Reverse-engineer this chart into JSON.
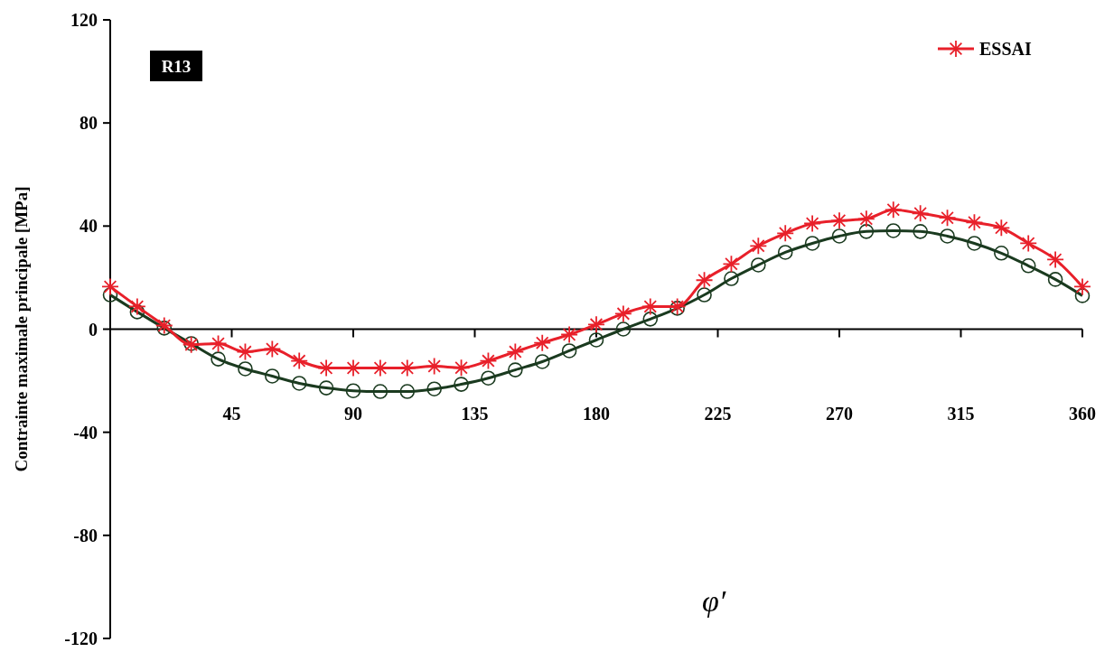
{
  "chart_data": {
    "type": "line",
    "xlabel": "φ′",
    "ylabel": "Contrainte maximale principale [MPa]",
    "annotations": [
      "R13"
    ],
    "x": [
      0,
      10,
      20,
      30,
      40,
      50,
      60,
      70,
      80,
      90,
      100,
      110,
      120,
      130,
      140,
      150,
      160,
      170,
      180,
      190,
      200,
      210,
      220,
      230,
      240,
      250,
      260,
      270,
      280,
      290,
      300,
      310,
      320,
      330,
      340,
      350,
      360
    ],
    "series": [
      {
        "color": "#1a3a1f",
        "marker": "circle",
        "values": [
          13.3,
          6.7,
          0.4,
          -5.6,
          -11.6,
          -15.4,
          -18.2,
          -21,
          -22.8,
          -23.9,
          -24.2,
          -24.2,
          -23.2,
          -21.4,
          -19,
          -15.8,
          -12.6,
          -8.4,
          -4.2,
          0,
          3.9,
          8.1,
          13.3,
          19.6,
          24.9,
          29.8,
          33.3,
          36.1,
          37.9,
          38.2,
          37.9,
          36.1,
          33.3,
          29.5,
          24.6,
          19.3,
          13
        ]
      },
      {
        "name": "ESSAI",
        "color": "#e8202a",
        "marker": "cross",
        "values": [
          16.5,
          8.8,
          1.4,
          -6,
          -5.6,
          -8.8,
          -7.7,
          -12.3,
          -15.1,
          -15.1,
          -15.1,
          -15.1,
          -14.4,
          -15,
          -12.3,
          -8.8,
          -5.3,
          -2.1,
          1.8,
          6,
          8.8,
          8.8,
          19,
          25.3,
          32.3,
          37.2,
          41,
          42.1,
          42.8,
          46.3,
          44.9,
          43.2,
          41.4,
          39.3,
          33.3,
          27,
          16.5
        ]
      }
    ],
    "xlim": [
      0,
      360
    ],
    "xticks": [
      45,
      90,
      135,
      180,
      225,
      270,
      315,
      360
    ],
    "ylim": [
      -120,
      120
    ],
    "yticks": [
      -120,
      -80,
      -40,
      0,
      40,
      80,
      120
    ],
    "legend": "top right"
  }
}
